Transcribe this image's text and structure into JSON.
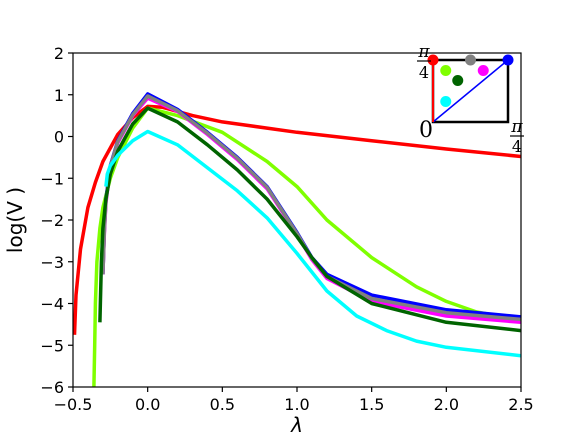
{
  "chart_data": {
    "type": "line",
    "xlabel": "λ",
    "ylabel": "log(V )",
    "xlim": [
      -0.5,
      2.5
    ],
    "ylim": [
      -6,
      2
    ],
    "xticks": [
      -0.5,
      0.0,
      0.5,
      1.0,
      1.5,
      2.0,
      2.5
    ],
    "xtick_labels": [
      "−0.5",
      "0.0",
      "0.5",
      "1.0",
      "1.5",
      "2.0",
      "2.5"
    ],
    "yticks": [
      -6,
      -5,
      -4,
      -3,
      -2,
      -1,
      0,
      1,
      2
    ],
    "ytick_labels": [
      "−6",
      "−5",
      "−4",
      "−3",
      "−2",
      "−1",
      "0",
      "1",
      "2"
    ],
    "grid": false,
    "series": [
      {
        "color": "#ff0000",
        "x": [
          -0.49,
          -0.48,
          -0.45,
          -0.4,
          -0.35,
          -0.3,
          -0.2,
          -0.1,
          0.0,
          0.1,
          0.3,
          0.5,
          1.0,
          1.5,
          2.0,
          2.5
        ],
        "y": [
          -4.75,
          -3.8,
          -2.7,
          -1.7,
          -1.1,
          -0.6,
          0.05,
          0.45,
          0.72,
          0.7,
          0.5,
          0.35,
          0.1,
          -0.1,
          -0.3,
          -0.48
        ]
      },
      {
        "color": "#7fff00",
        "x": [
          -0.36,
          -0.355,
          -0.35,
          -0.34,
          -0.32,
          -0.3,
          -0.25,
          -0.2,
          -0.1,
          0.0,
          0.2,
          0.5,
          0.8,
          1.0,
          1.2,
          1.5,
          1.8,
          2.0,
          2.2,
          2.5
        ],
        "y": [
          -6.0,
          -5.0,
          -4.0,
          -3.0,
          -2.2,
          -1.7,
          -1.0,
          -0.5,
          0.2,
          0.68,
          0.5,
          0.1,
          -0.6,
          -1.2,
          -2.0,
          -2.9,
          -3.6,
          -3.95,
          -4.2,
          -4.4
        ]
      },
      {
        "color": "#0000ff",
        "x": [
          -0.3,
          -0.29,
          -0.28,
          -0.25,
          -0.2,
          -0.1,
          0.0,
          0.2,
          0.4,
          0.6,
          0.8,
          1.0,
          1.1,
          1.2,
          1.5,
          2.0,
          2.5
        ],
        "y": [
          -3.3,
          -2.2,
          -1.5,
          -0.7,
          -0.1,
          0.55,
          1.02,
          0.65,
          0.1,
          -0.5,
          -1.2,
          -2.3,
          -2.9,
          -3.3,
          -3.8,
          -4.15,
          -4.32
        ]
      },
      {
        "color": "#ff00ff",
        "x": [
          -0.3,
          -0.29,
          -0.28,
          -0.25,
          -0.2,
          -0.1,
          0.0,
          0.2,
          0.4,
          0.6,
          0.8,
          1.0,
          1.1,
          1.2,
          1.5,
          2.0,
          2.5
        ],
        "y": [
          -3.3,
          -2.3,
          -1.6,
          -0.75,
          -0.15,
          0.5,
          0.92,
          0.6,
          0.05,
          -0.55,
          -1.25,
          -2.35,
          -2.95,
          -3.4,
          -3.95,
          -4.3,
          -4.45
        ]
      },
      {
        "color": "#808080",
        "x": [
          -0.3,
          -0.29,
          -0.28,
          -0.25,
          -0.2,
          -0.1,
          0.0,
          0.2,
          0.4,
          0.6,
          0.8,
          1.0,
          1.1,
          1.2,
          1.5,
          2.0,
          2.5
        ],
        "y": [
          -3.3,
          -2.25,
          -1.55,
          -0.72,
          -0.12,
          0.52,
          0.97,
          0.62,
          0.08,
          -0.52,
          -1.22,
          -2.32,
          -2.92,
          -3.35,
          -3.88,
          -4.22,
          -4.38
        ]
      },
      {
        "color": "#006400",
        "x": [
          -0.32,
          -0.31,
          -0.3,
          -0.28,
          -0.25,
          -0.2,
          -0.1,
          0.0,
          0.2,
          0.4,
          0.6,
          0.8,
          1.0,
          1.1,
          1.2,
          1.5,
          2.0,
          2.5
        ],
        "y": [
          -4.45,
          -3.0,
          -2.2,
          -1.5,
          -0.9,
          -0.35,
          0.3,
          0.68,
          0.35,
          -0.2,
          -0.8,
          -1.5,
          -2.4,
          -2.9,
          -3.35,
          -4.0,
          -4.45,
          -4.65
        ]
      },
      {
        "color": "#00ffff",
        "x": [
          -0.28,
          -0.27,
          -0.25,
          -0.2,
          -0.1,
          0.0,
          0.2,
          0.4,
          0.6,
          0.8,
          1.0,
          1.2,
          1.4,
          1.6,
          1.8,
          2.0,
          2.5
        ],
        "y": [
          -1.2,
          -0.9,
          -0.7,
          -0.45,
          -0.1,
          0.12,
          -0.2,
          -0.75,
          -1.3,
          -1.95,
          -2.8,
          -3.7,
          -4.3,
          -4.65,
          -4.9,
          -5.05,
          -5.25
        ]
      }
    ],
    "inset": {
      "label_top": "π",
      "label_top_den": "4",
      "label_right": "π",
      "label_right_den": "4",
      "origin_label": "0",
      "points": [
        {
          "color": "#ff0000",
          "u": 0.0,
          "v": 1.0
        },
        {
          "color": "#808080",
          "u": 0.5,
          "v": 1.0
        },
        {
          "color": "#0000ff",
          "u": 1.0,
          "v": 1.0
        },
        {
          "color": "#7fff00",
          "u": 0.17,
          "v": 0.83
        },
        {
          "color": "#ff00ff",
          "u": 0.67,
          "v": 0.83
        },
        {
          "color": "#006400",
          "u": 0.33,
          "v": 0.67
        },
        {
          "color": "#00ffff",
          "u": 0.17,
          "v": 0.33
        }
      ]
    }
  }
}
